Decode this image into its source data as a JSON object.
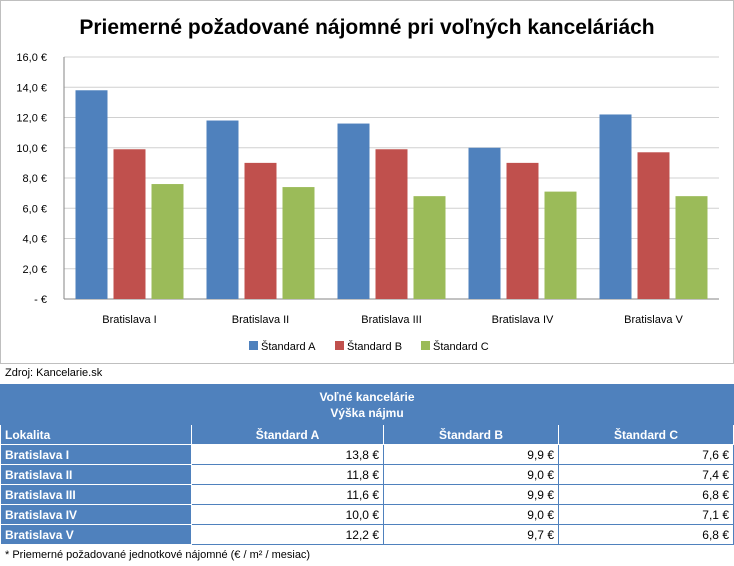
{
  "chart_data": {
    "type": "bar",
    "title": "Priemerné požadované nájomné pri voľných kanceláriách",
    "categories": [
      "Bratislava I",
      "Bratislava II",
      "Bratislava III",
      "Bratislava IV",
      "Bratislava V"
    ],
    "series": [
      {
        "name": "Štandard A",
        "color": "#4f81bd",
        "values": [
          13.8,
          11.8,
          11.6,
          10.0,
          12.2
        ]
      },
      {
        "name": "Štandard B",
        "color": "#c0504d",
        "values": [
          9.9,
          9.0,
          9.9,
          9.0,
          9.7
        ]
      },
      {
        "name": "Štandard C",
        "color": "#9bbb59",
        "values": [
          7.6,
          7.4,
          6.8,
          7.1,
          6.8
        ]
      }
    ],
    "ylim": [
      0,
      16
    ],
    "yticks": [
      "-  €",
      "2,0 €",
      "4,0 €",
      "6,0 €",
      "8,0 €",
      "10,0 €",
      "12,0 €",
      "14,0 €",
      "16,0 €"
    ],
    "grid": true,
    "legend": "bottom"
  },
  "source": "Zdroj: Kancelarie.sk",
  "table": {
    "title_line1": "Voľné kancelárie",
    "title_line2": "Výška nájmu",
    "columns": [
      "Lokalita",
      "Štandard A",
      "Štandard B",
      "Štandard C"
    ],
    "rows": [
      {
        "label": "Bratislava I",
        "values": [
          "13,8 €",
          "9,9 €",
          "7,6 €"
        ]
      },
      {
        "label": "Bratislava II",
        "values": [
          "11,8 €",
          "9,0 €",
          "7,4 €"
        ]
      },
      {
        "label": "Bratislava III",
        "values": [
          "11,6 €",
          "9,9 €",
          "6,8 €"
        ]
      },
      {
        "label": "Bratislava IV",
        "values": [
          "10,0 €",
          "9,0 €",
          "7,1 €"
        ]
      },
      {
        "label": "Bratislava V",
        "values": [
          "12,2 €",
          "9,7 €",
          "6,8 €"
        ]
      }
    ]
  },
  "footnote": "* Priemerné požadované jednotkové nájomné (€ / m² / mesiac)"
}
